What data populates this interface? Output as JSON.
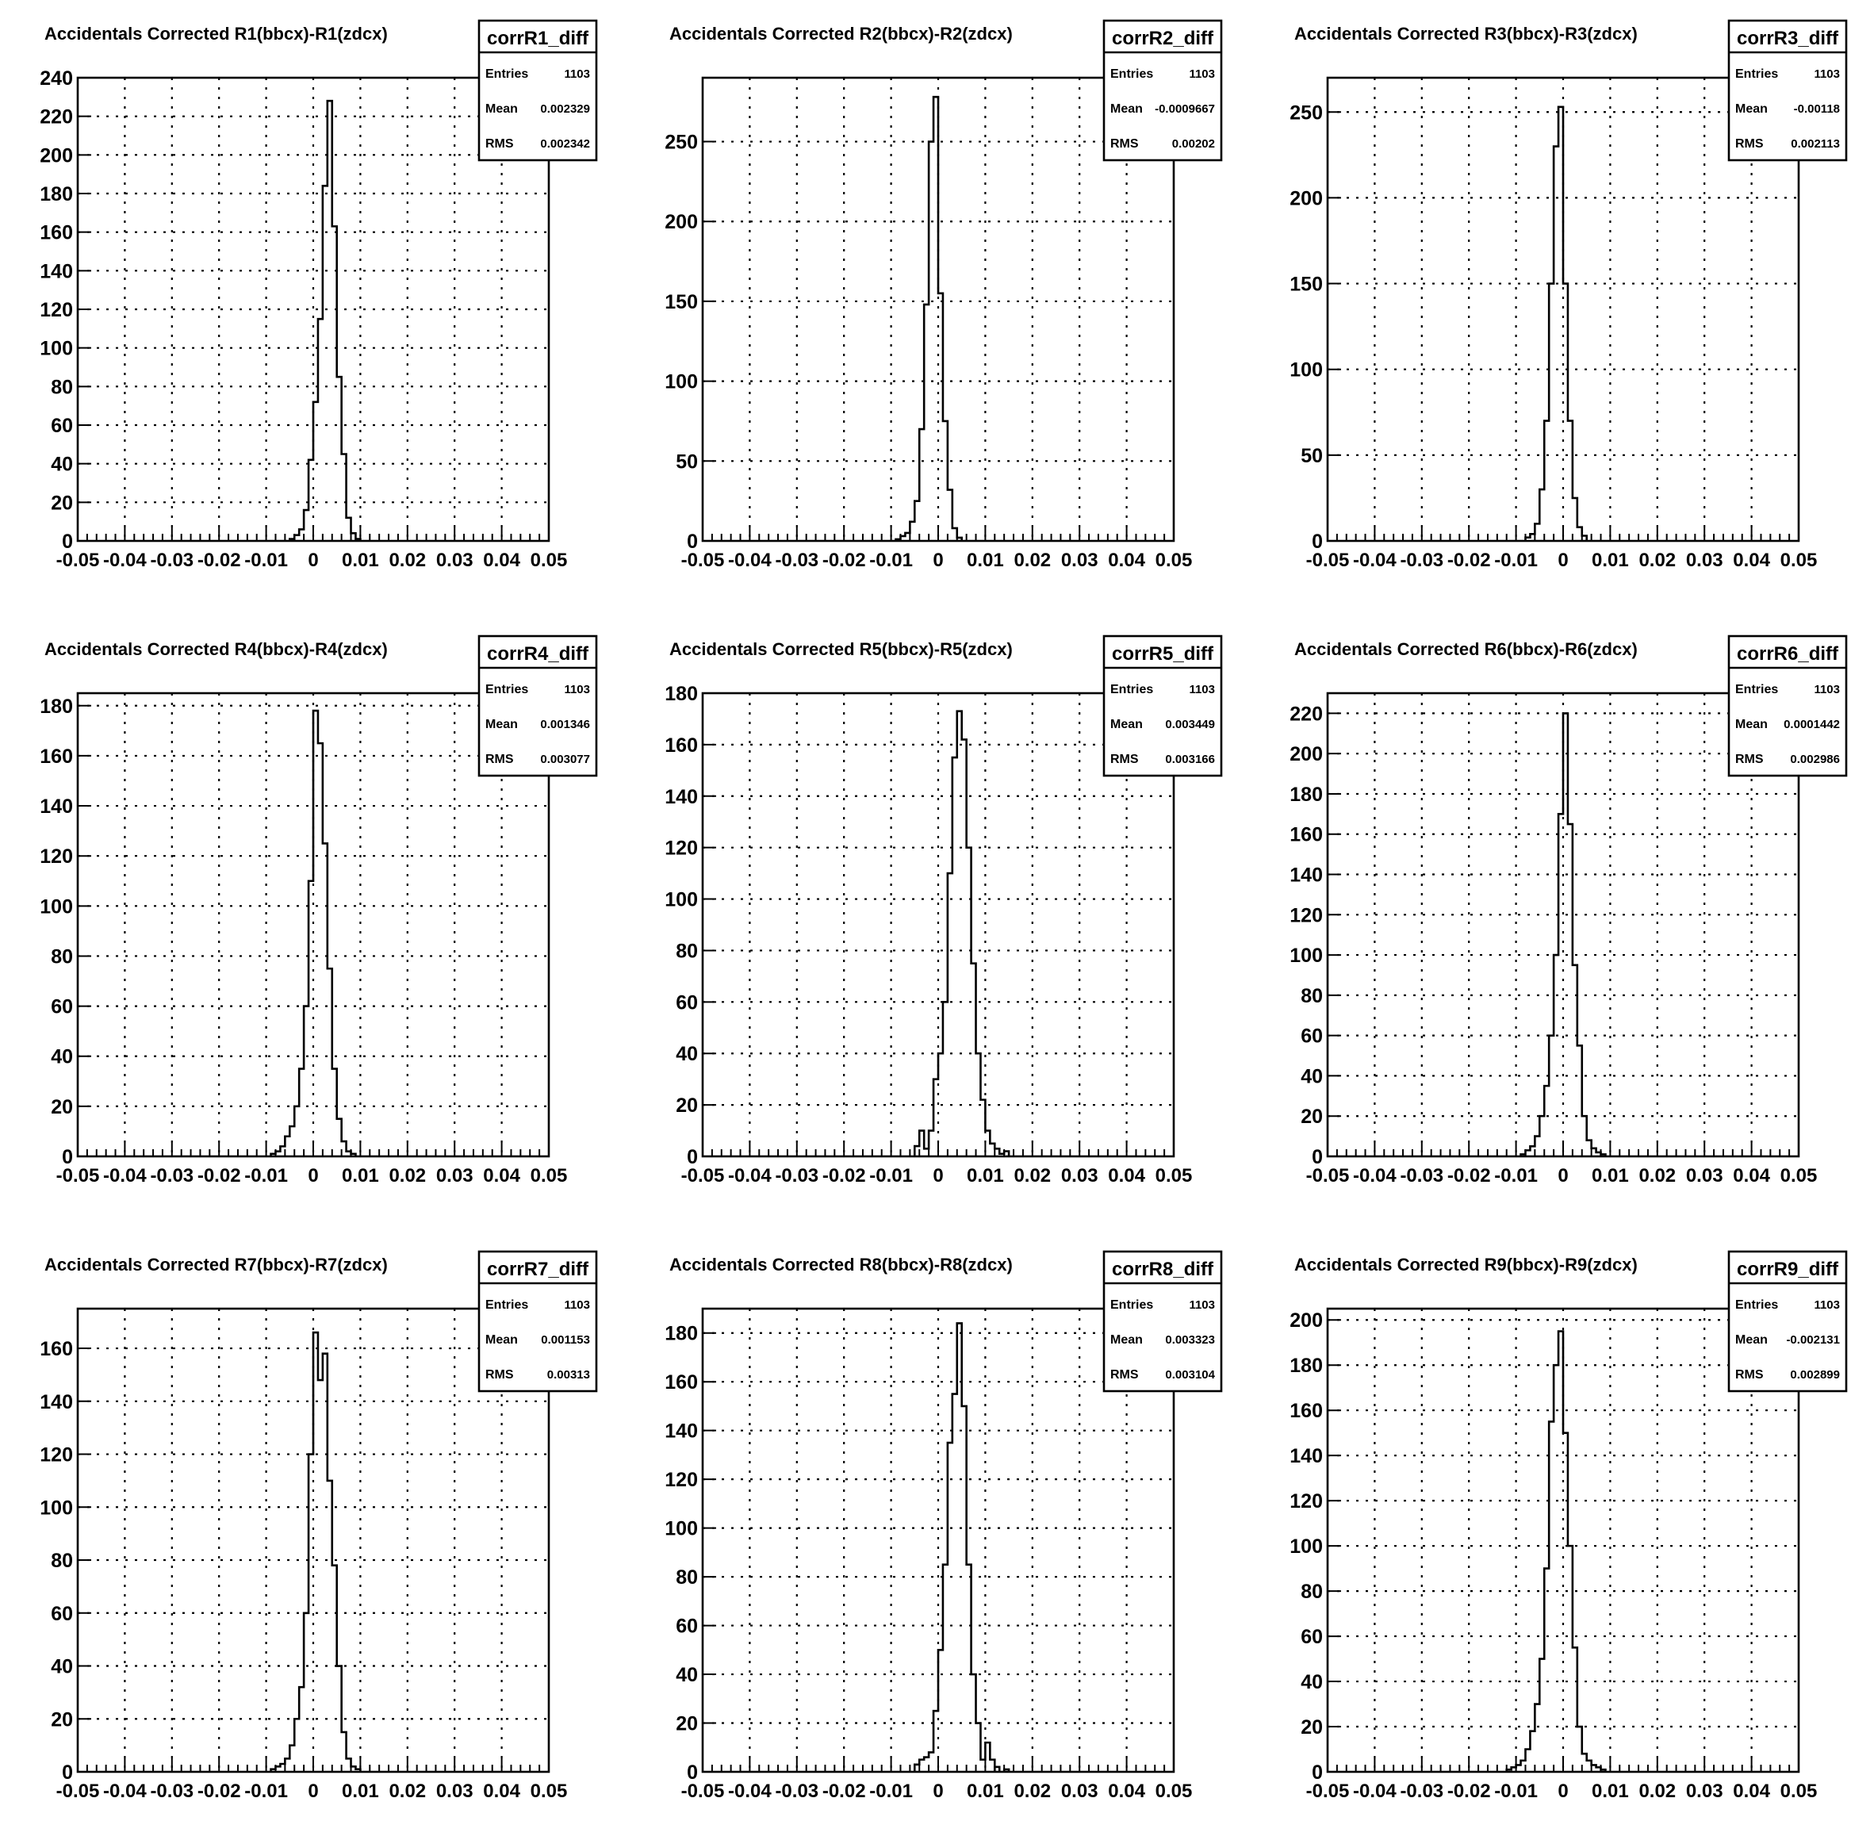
{
  "chart_data": [
    {
      "type": "histogram",
      "title": "Accidentals Corrected R1(bbcx)-R1(zdcx)",
      "stats": {
        "name": "corrR1_diff",
        "entries_label": "Entries",
        "entries": "1103",
        "mean_label": "Mean",
        "mean": "0.002329",
        "rms_label": "RMS",
        "rms": "0.002342"
      },
      "xlim": [
        -0.05,
        0.05
      ],
      "xticks": [
        "-0.05",
        "-0.04",
        "-0.03",
        "-0.02",
        "-0.01",
        "0",
        "0.01",
        "0.02",
        "0.03",
        "0.04",
        "0.05"
      ],
      "ylim": [
        0,
        240
      ],
      "yticks": [
        "0",
        "20",
        "40",
        "60",
        "80",
        "100",
        "120",
        "140",
        "160",
        "180",
        "200",
        "220",
        "240"
      ],
      "ytick_values": [
        0,
        20,
        40,
        60,
        80,
        100,
        120,
        140,
        160,
        180,
        200,
        220,
        240
      ],
      "grid": true,
      "bin_edges": [
        -0.005,
        -0.004,
        -0.003,
        -0.002,
        -0.001,
        0.0,
        0.001,
        0.002,
        0.003,
        0.004,
        0.005,
        0.006,
        0.007,
        0.008,
        0.009,
        0.01
      ],
      "counts": [
        1,
        3,
        6,
        16,
        42,
        72,
        115,
        184,
        228,
        163,
        85,
        45,
        12,
        4,
        1
      ]
    },
    {
      "type": "histogram",
      "title": "Accidentals Corrected R2(bbcx)-R2(zdcx)",
      "stats": {
        "name": "corrR2_diff",
        "entries_label": "Entries",
        "entries": "1103",
        "mean_label": "Mean",
        "mean": "-0.0009667",
        "rms_label": "RMS",
        "rms": "0.00202"
      },
      "xlim": [
        -0.05,
        0.05
      ],
      "xticks": [
        "-0.05",
        "-0.04",
        "-0.03",
        "-0.02",
        "-0.01",
        "0",
        "0.01",
        "0.02",
        "0.03",
        "0.04",
        "0.05"
      ],
      "ylim": [
        0,
        290
      ],
      "yticks": [
        "0",
        "50",
        "100",
        "150",
        "200",
        "250"
      ],
      "ytick_values": [
        0,
        50,
        100,
        150,
        200,
        250
      ],
      "grid": true,
      "bin_edges": [
        -0.009,
        -0.008,
        -0.007,
        -0.006,
        -0.005,
        -0.004,
        -0.003,
        -0.002,
        -0.001,
        0.0,
        0.001,
        0.002,
        0.003,
        0.004,
        0.005
      ],
      "counts": [
        1,
        3,
        5,
        12,
        25,
        70,
        148,
        250,
        278,
        155,
        75,
        32,
        8,
        2
      ]
    },
    {
      "type": "histogram",
      "title": "Accidentals Corrected R3(bbcx)-R3(zdcx)",
      "stats": {
        "name": "corrR3_diff",
        "entries_label": "Entries",
        "entries": "1103",
        "mean_label": "Mean",
        "mean": "-0.00118",
        "rms_label": "RMS",
        "rms": "0.002113"
      },
      "xlim": [
        -0.05,
        0.05
      ],
      "xticks": [
        "-0.05",
        "-0.04",
        "-0.03",
        "-0.02",
        "-0.01",
        "0",
        "0.01",
        "0.02",
        "0.03",
        "0.04",
        "0.05"
      ],
      "ylim": [
        0,
        270
      ],
      "yticks": [
        "0",
        "50",
        "100",
        "150",
        "200",
        "250"
      ],
      "ytick_values": [
        0,
        50,
        100,
        150,
        200,
        250
      ],
      "grid": true,
      "bin_edges": [
        -0.008,
        -0.007,
        -0.006,
        -0.005,
        -0.004,
        -0.003,
        -0.002,
        -0.001,
        0.0,
        0.001,
        0.002,
        0.003,
        0.004,
        0.005
      ],
      "counts": [
        2,
        4,
        10,
        30,
        70,
        150,
        230,
        253,
        150,
        70,
        25,
        8,
        3
      ]
    },
    {
      "type": "histogram",
      "title": "Accidentals Corrected R4(bbcx)-R4(zdcx)",
      "stats": {
        "name": "corrR4_diff",
        "entries_label": "Entries",
        "entries": "1103",
        "mean_label": "Mean",
        "mean": "0.001346",
        "rms_label": "RMS",
        "rms": "0.003077"
      },
      "xlim": [
        -0.05,
        0.05
      ],
      "xticks": [
        "-0.05",
        "-0.04",
        "-0.03",
        "-0.02",
        "-0.01",
        "0",
        "0.01",
        "0.02",
        "0.03",
        "0.04",
        "0.05"
      ],
      "ylim": [
        0,
        185
      ],
      "yticks": [
        "0",
        "20",
        "40",
        "60",
        "80",
        "100",
        "120",
        "140",
        "160",
        "180"
      ],
      "ytick_values": [
        0,
        20,
        40,
        60,
        80,
        100,
        120,
        140,
        160,
        180
      ],
      "grid": true,
      "bin_edges": [
        -0.009,
        -0.008,
        -0.007,
        -0.006,
        -0.005,
        -0.004,
        -0.003,
        -0.002,
        -0.001,
        0.0,
        0.001,
        0.002,
        0.003,
        0.004,
        0.005,
        0.006,
        0.007,
        0.008,
        0.009
      ],
      "counts": [
        1,
        2,
        4,
        8,
        12,
        20,
        35,
        60,
        110,
        178,
        165,
        125,
        75,
        35,
        15,
        6,
        2,
        1
      ]
    },
    {
      "type": "histogram",
      "title": "Accidentals Corrected R5(bbcx)-R5(zdcx)",
      "stats": {
        "name": "corrR5_diff",
        "entries_label": "Entries",
        "entries": "1103",
        "mean_label": "Mean",
        "mean": "0.003449",
        "rms_label": "RMS",
        "rms": "0.003166"
      },
      "xlim": [
        -0.05,
        0.05
      ],
      "xticks": [
        "-0.05",
        "-0.04",
        "-0.03",
        "-0.02",
        "-0.01",
        "0",
        "0.01",
        "0.02",
        "0.03",
        "0.04",
        "0.05"
      ],
      "ylim": [
        0,
        180
      ],
      "yticks": [
        "0",
        "20",
        "40",
        "60",
        "80",
        "100",
        "120",
        "140",
        "160",
        "180"
      ],
      "ytick_values": [
        0,
        20,
        40,
        60,
        80,
        100,
        120,
        140,
        160,
        180
      ],
      "grid": true,
      "bin_edges": [
        -0.005,
        -0.004,
        -0.003,
        -0.002,
        -0.001,
        0.0,
        0.001,
        0.002,
        0.003,
        0.004,
        0.005,
        0.006,
        0.007,
        0.008,
        0.009,
        0.01,
        0.011,
        0.012,
        0.013,
        0.014,
        0.015
      ],
      "counts": [
        4,
        10,
        3,
        10,
        30,
        40,
        60,
        110,
        155,
        173,
        162,
        120,
        75,
        40,
        22,
        10,
        5,
        3,
        1,
        2
      ]
    },
    {
      "type": "histogram",
      "title": "Accidentals Corrected R6(bbcx)-R6(zdcx)",
      "stats": {
        "name": "corrR6_diff",
        "entries_label": "Entries",
        "entries": "1103",
        "mean_label": "Mean",
        "mean": "0.0001442",
        "rms_label": "RMS",
        "rms": "0.002986"
      },
      "xlim": [
        -0.05,
        0.05
      ],
      "xticks": [
        "-0.05",
        "-0.04",
        "-0.03",
        "-0.02",
        "-0.01",
        "0",
        "0.01",
        "0.02",
        "0.03",
        "0.04",
        "0.05"
      ],
      "ylim": [
        0,
        230
      ],
      "yticks": [
        "0",
        "20",
        "40",
        "60",
        "80",
        "100",
        "120",
        "140",
        "160",
        "180",
        "200",
        "220"
      ],
      "ytick_values": [
        0,
        20,
        40,
        60,
        80,
        100,
        120,
        140,
        160,
        180,
        200,
        220
      ],
      "grid": true,
      "bin_edges": [
        -0.009,
        -0.008,
        -0.007,
        -0.006,
        -0.005,
        -0.004,
        -0.003,
        -0.002,
        -0.001,
        0.0,
        0.001,
        0.002,
        0.003,
        0.004,
        0.005,
        0.006,
        0.007,
        0.008,
        0.009
      ],
      "counts": [
        1,
        3,
        5,
        10,
        20,
        35,
        60,
        100,
        170,
        220,
        165,
        95,
        55,
        20,
        8,
        4,
        2,
        1
      ]
    },
    {
      "type": "histogram",
      "title": "Accidentals Corrected R7(bbcx)-R7(zdcx)",
      "stats": {
        "name": "corrR7_diff",
        "entries_label": "Entries",
        "entries": "1103",
        "mean_label": "Mean",
        "mean": "0.001153",
        "rms_label": "RMS",
        "rms": "0.00313"
      },
      "xlim": [
        -0.05,
        0.05
      ],
      "xticks": [
        "-0.05",
        "-0.04",
        "-0.03",
        "-0.02",
        "-0.01",
        "0",
        "0.01",
        "0.02",
        "0.03",
        "0.04",
        "0.05"
      ],
      "ylim": [
        0,
        175
      ],
      "yticks": [
        "0",
        "20",
        "40",
        "60",
        "80",
        "100",
        "120",
        "140",
        "160"
      ],
      "ytick_values": [
        0,
        20,
        40,
        60,
        80,
        100,
        120,
        140,
        160
      ],
      "grid": true,
      "bin_edges": [
        -0.009,
        -0.008,
        -0.007,
        -0.006,
        -0.005,
        -0.004,
        -0.003,
        -0.002,
        -0.001,
        0.0,
        0.001,
        0.002,
        0.003,
        0.004,
        0.005,
        0.006,
        0.007,
        0.008,
        0.009,
        0.01
      ],
      "counts": [
        1,
        2,
        3,
        5,
        10,
        20,
        32,
        60,
        120,
        166,
        148,
        158,
        110,
        78,
        40,
        15,
        5,
        2,
        1
      ]
    },
    {
      "type": "histogram",
      "title": "Accidentals Corrected R8(bbcx)-R8(zdcx)",
      "stats": {
        "name": "corrR8_diff",
        "entries_label": "Entries",
        "entries": "1103",
        "mean_label": "Mean",
        "mean": "0.003323",
        "rms_label": "RMS",
        "rms": "0.003104"
      },
      "xlim": [
        -0.05,
        0.05
      ],
      "xticks": [
        "-0.05",
        "-0.04",
        "-0.03",
        "-0.02",
        "-0.01",
        "0",
        "0.01",
        "0.02",
        "0.03",
        "0.04",
        "0.05"
      ],
      "ylim": [
        0,
        190
      ],
      "yticks": [
        "0",
        "20",
        "40",
        "60",
        "80",
        "100",
        "120",
        "140",
        "160",
        "180"
      ],
      "ytick_values": [
        0,
        20,
        40,
        60,
        80,
        100,
        120,
        140,
        160,
        180
      ],
      "grid": true,
      "bin_edges": [
        -0.005,
        -0.004,
        -0.003,
        -0.002,
        -0.001,
        0.0,
        0.001,
        0.002,
        0.003,
        0.004,
        0.005,
        0.006,
        0.007,
        0.008,
        0.009,
        0.01,
        0.011,
        0.012
      ],
      "counts": [
        3,
        5,
        6,
        8,
        25,
        50,
        85,
        135,
        155,
        184,
        150,
        85,
        40,
        20,
        5,
        12,
        5
      ],
      "extra_bins": [
        {
          "from": 0.012,
          "to": 0.013,
          "count": 2
        },
        {
          "from": 0.014,
          "to": 0.015,
          "count": 1
        }
      ]
    },
    {
      "type": "histogram",
      "title": "Accidentals Corrected R9(bbcx)-R9(zdcx)",
      "stats": {
        "name": "corrR9_diff",
        "entries_label": "Entries",
        "entries": "1103",
        "mean_label": "Mean",
        "mean": "-0.002131",
        "rms_label": "RMS",
        "rms": "0.002899"
      },
      "xlim": [
        -0.05,
        0.05
      ],
      "xticks": [
        "-0.05",
        "-0.04",
        "-0.03",
        "-0.02",
        "-0.01",
        "0",
        "0.01",
        "0.02",
        "0.03",
        "0.04",
        "0.05"
      ],
      "ylim": [
        0,
        205
      ],
      "yticks": [
        "0",
        "20",
        "40",
        "60",
        "80",
        "100",
        "120",
        "140",
        "160",
        "180",
        "200"
      ],
      "ytick_values": [
        0,
        20,
        40,
        60,
        80,
        100,
        120,
        140,
        160,
        180,
        200
      ],
      "grid": true,
      "bin_edges": [
        -0.012,
        -0.011,
        -0.01,
        -0.009,
        -0.008,
        -0.007,
        -0.006,
        -0.005,
        -0.004,
        -0.003,
        -0.002,
        -0.001,
        0.0,
        0.001,
        0.002,
        0.003,
        0.004,
        0.005,
        0.006,
        0.007,
        0.008,
        0.009
      ],
      "counts": [
        1,
        2,
        3,
        5,
        10,
        18,
        30,
        50,
        90,
        155,
        180,
        195,
        150,
        100,
        55,
        20,
        8,
        5,
        3,
        2,
        1
      ]
    }
  ]
}
